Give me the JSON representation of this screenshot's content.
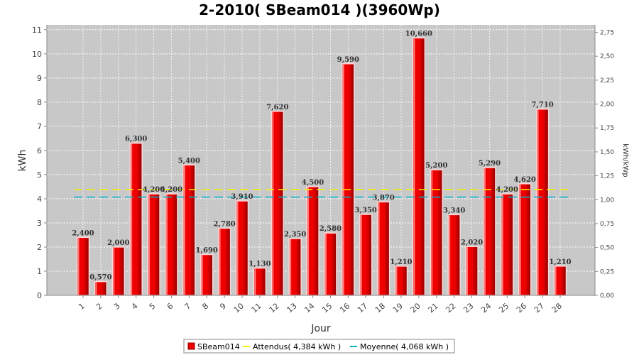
{
  "colors": {
    "plot_bg": "#c8c8c8",
    "bar_fill": "#ee0000",
    "bar_dark": "#8c0000",
    "bar_edge": "#ffd6d6",
    "attendus_line": "#f4f000",
    "moyenne_line": "#00b4cc",
    "grid": "#ffffff"
  },
  "chart_data": {
    "type": "bar",
    "title": "2-2010( SBeam014 )(3960Wp)",
    "xlabel": "Jour",
    "ylabel": "kWh",
    "ylabel_right": "kWh/kWp",
    "categories": [
      "1",
      "2",
      "3",
      "4",
      "5",
      "6",
      "7",
      "8",
      "9",
      "10",
      "11",
      "12",
      "13",
      "14",
      "15",
      "16",
      "17",
      "18",
      "19",
      "20",
      "21",
      "22",
      "23",
      "24",
      "25",
      "26",
      "27",
      "28"
    ],
    "series": [
      {
        "name": "SBeam014",
        "values": [
          2.4,
          0.57,
          2.0,
          6.3,
          4.2,
          4.2,
          5.4,
          1.69,
          2.78,
          3.91,
          1.13,
          7.62,
          2.35,
          4.5,
          2.58,
          9.59,
          3.35,
          3.87,
          1.21,
          10.66,
          5.2,
          3.34,
          2.02,
          5.29,
          4.2,
          4.62,
          7.71,
          1.21
        ],
        "labels": [
          "2,400",
          "0,570",
          "2,000",
          "6,300",
          "4,200",
          "4,200",
          "5,400",
          "1,690",
          "2,780",
          "3,910",
          "1,130",
          "7,620",
          "2,350",
          "4,500",
          "2,580",
          "9,590",
          "3,350",
          "3,870",
          "1,210",
          "10,660",
          "5,200",
          "3,340",
          "2,020",
          "5,290",
          "4,200",
          "4,620",
          "7,710",
          "1,210"
        ]
      }
    ],
    "reference_lines": [
      {
        "name": "Attendus( 4,384 kWh )",
        "value": 4.384
      },
      {
        "name": "Moyenne( 4,068 kWh )",
        "value": 4.068
      }
    ],
    "ylim": [
      0,
      11.2
    ],
    "yticks": [
      0,
      1,
      2,
      3,
      4,
      5,
      6,
      7,
      8,
      9,
      10,
      11
    ],
    "ytick_labels": [
      "0",
      "1",
      "2",
      "3",
      "4",
      "5",
      "6",
      "7",
      "8",
      "9",
      "10",
      "11"
    ],
    "ylim_right": [
      0,
      2.828
    ],
    "yticks_right": [
      0,
      0.25,
      0.5,
      0.75,
      1.0,
      1.25,
      1.5,
      1.75,
      2.0,
      2.25,
      2.5,
      2.75
    ],
    "ytick_labels_right": [
      "0,00",
      "0,25",
      "0,50",
      "0,75",
      "1,00",
      "1,25",
      "1,50",
      "1,75",
      "2,00",
      "2,25",
      "2,50",
      "2,75"
    ],
    "grid": true,
    "legend_position": "bottom-center",
    "legend": [
      "SBeam014",
      "Attendus( 4,384 kWh )",
      "Moyenne( 4,068 kWh )"
    ]
  }
}
